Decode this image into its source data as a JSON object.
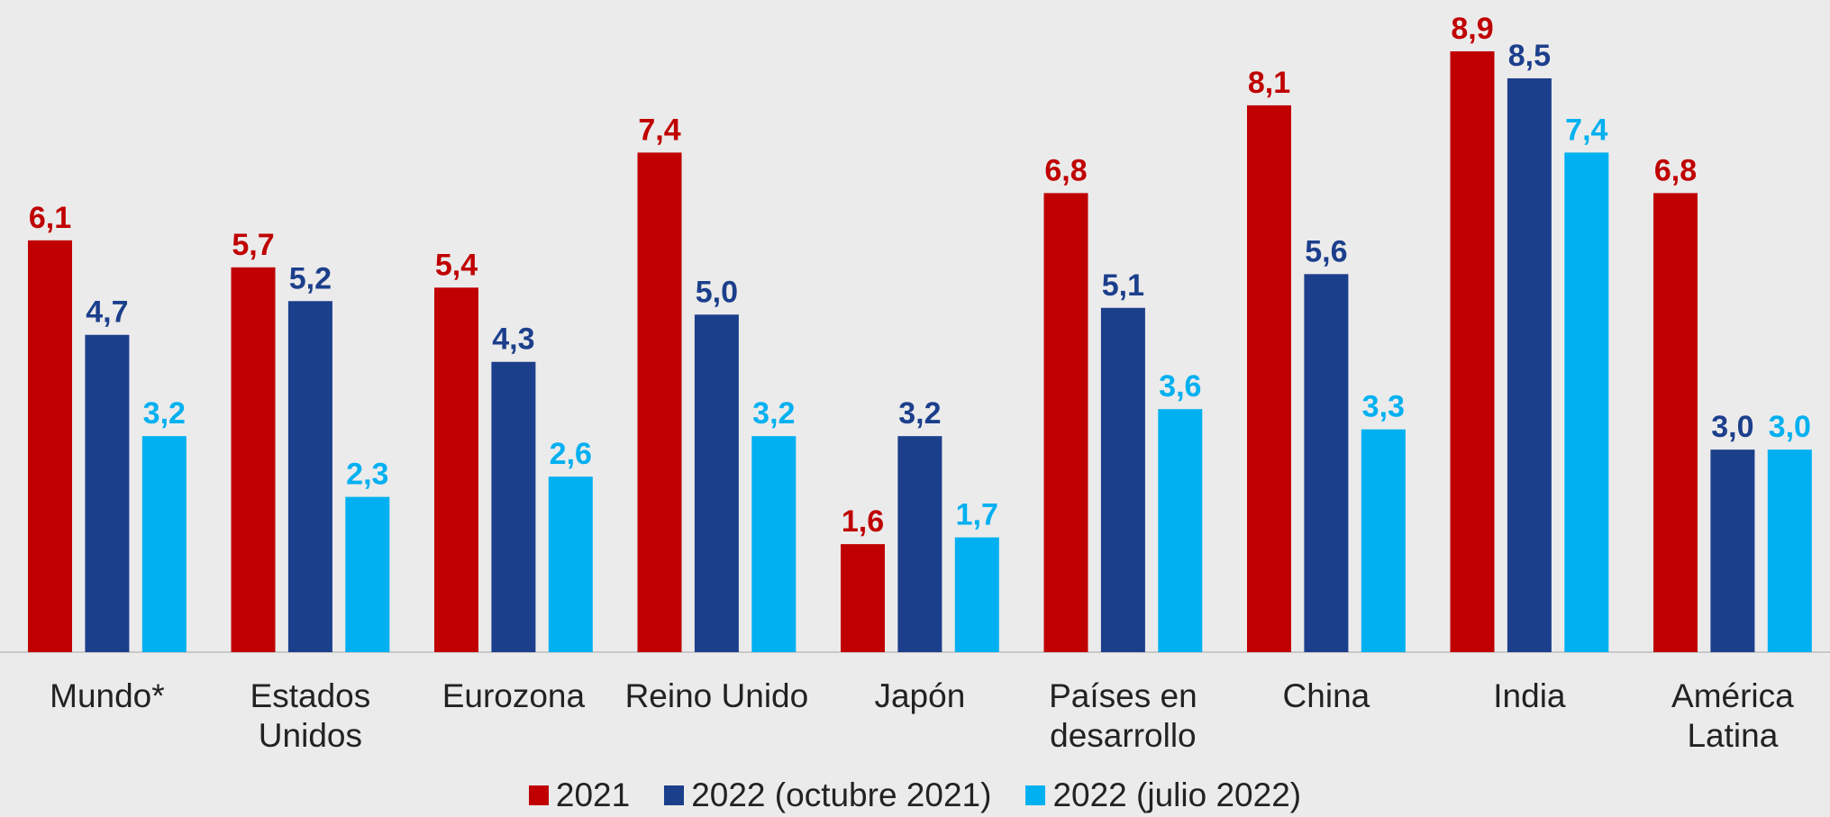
{
  "chart_data": {
    "type": "bar",
    "categories": [
      "Mundo*",
      "Estados Unidos",
      "Eurozona",
      "Reino Unido",
      "Japón",
      "Países en desarrollo",
      "China",
      "India",
      "América Latina"
    ],
    "series": [
      {
        "name": "2021",
        "color": "#c00000",
        "values": [
          6.1,
          5.7,
          5.4,
          7.4,
          1.6,
          6.8,
          8.1,
          8.9,
          6.8
        ],
        "value_labels": [
          "6,1",
          "5,7",
          "5,4",
          "7,4",
          "1,6",
          "6,8",
          "8,1",
          "8,9",
          "6,8"
        ]
      },
      {
        "name": "2022 (octubre 2021)",
        "color": "#1c3f8c",
        "values": [
          4.7,
          5.2,
          4.3,
          5.0,
          3.2,
          5.1,
          5.6,
          8.5,
          3.0
        ],
        "value_labels": [
          "4,7",
          "5,2",
          "4,3",
          "5,0",
          "3,2",
          "5,1",
          "5,6",
          "8,5",
          "3,0"
        ]
      },
      {
        "name": "2022 (julio 2022)",
        "color": "#00b0f0",
        "values": [
          3.2,
          2.3,
          2.6,
          3.2,
          1.7,
          3.6,
          3.3,
          7.4,
          3.0
        ],
        "value_labels": [
          "3,2",
          "2,3",
          "2,6",
          "3,2",
          "1,7",
          "3,6",
          "3,3",
          "7,4",
          "3,0"
        ]
      }
    ],
    "ylim": [
      0,
      9.5
    ],
    "legend": "bottom"
  }
}
